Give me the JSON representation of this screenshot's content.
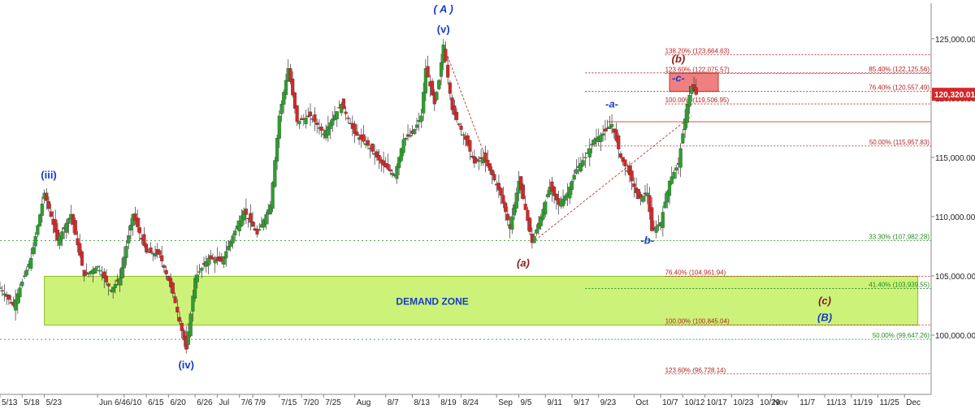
{
  "chart_data": {
    "type": "candlestick",
    "title": "",
    "xlabel": "",
    "ylabel": "",
    "ylim": [
      95000,
      128000
    ],
    "grid": false,
    "last_price_label": "120,320.01",
    "y_ticks": [
      {
        "value": 100000,
        "label": "100,000.00"
      },
      {
        "value": 105000,
        "label": "105,000.00"
      },
      {
        "value": 110000,
        "label": "110,000.00"
      },
      {
        "value": 115000,
        "label": "115,000.00"
      },
      {
        "value": 120000,
        "label": "120,000.00"
      },
      {
        "value": 125000,
        "label": "125,000.00"
      }
    ],
    "x_ticks": [
      {
        "label": "5/13",
        "x": 0
      },
      {
        "label": "5/18",
        "x": 5
      },
      {
        "label": "5/23",
        "x": 10
      },
      {
        "label": "Jun 6/4",
        "x": 22
      },
      {
        "label": "6/10",
        "x": 28
      },
      {
        "label": "6/15",
        "x": 33
      },
      {
        "label": "6/20",
        "x": 38
      },
      {
        "label": "6/26",
        "x": 44
      },
      {
        "label": "Jul",
        "x": 49
      },
      {
        "label": "7/6",
        "x": 54
      },
      {
        "label": "7/9",
        "x": 57
      },
      {
        "label": "7/15",
        "x": 63
      },
      {
        "label": "7/20",
        "x": 68
      },
      {
        "label": "7/25",
        "x": 73
      },
      {
        "label": "Aug",
        "x": 80
      },
      {
        "label": "8/7",
        "x": 87
      },
      {
        "label": "8/13",
        "x": 93
      },
      {
        "label": "8/19",
        "x": 99
      },
      {
        "label": "8/24",
        "x": 104
      },
      {
        "label": "Sep",
        "x": 112
      },
      {
        "label": "9/5",
        "x": 117
      },
      {
        "label": "9/11",
        "x": 123
      },
      {
        "label": "9/17",
        "x": 129
      },
      {
        "label": "9/23",
        "x": 135
      },
      {
        "label": "Oct",
        "x": 143
      },
      {
        "label": "10/7",
        "x": 149
      },
      {
        "label": "10/12",
        "x": 154
      },
      {
        "label": "10/17",
        "x": 159
      },
      {
        "label": "10/23",
        "x": 165
      },
      {
        "label": "10/29",
        "x": 171
      },
      {
        "label": "Nov",
        "x": 174
      },
      {
        "label": "11/7",
        "x": 180
      },
      {
        "label": "11/13",
        "x": 186
      },
      {
        "label": "11/19",
        "x": 192
      },
      {
        "label": "11/25",
        "x": 198
      },
      {
        "label": "Dec",
        "x": 204
      }
    ],
    "swing_points": [
      {
        "x": 0,
        "y": 104000
      },
      {
        "x": 3,
        "y": 102500
      },
      {
        "x": 7,
        "y": 106500
      },
      {
        "x": 10,
        "y": 112000
      },
      {
        "x": 13,
        "y": 108000
      },
      {
        "x": 16,
        "y": 110200
      },
      {
        "x": 19,
        "y": 105000
      },
      {
        "x": 22,
        "y": 105800
      },
      {
        "x": 25,
        "y": 103800
      },
      {
        "x": 27,
        "y": 104800
      },
      {
        "x": 30,
        "y": 110200
      },
      {
        "x": 33,
        "y": 107000
      },
      {
        "x": 36,
        "y": 106800
      },
      {
        "x": 39,
        "y": 103500
      },
      {
        "x": 42,
        "y": 98800
      },
      {
        "x": 44,
        "y": 104800
      },
      {
        "x": 47,
        "y": 106500
      },
      {
        "x": 50,
        "y": 106200
      },
      {
        "x": 53,
        "y": 108800
      },
      {
        "x": 55,
        "y": 110500
      },
      {
        "x": 58,
        "y": 108500
      },
      {
        "x": 61,
        "y": 111000
      },
      {
        "x": 63,
        "y": 118500
      },
      {
        "x": 65,
        "y": 122500
      },
      {
        "x": 67,
        "y": 118000
      },
      {
        "x": 70,
        "y": 118500
      },
      {
        "x": 73,
        "y": 117000
      },
      {
        "x": 77,
        "y": 119500
      },
      {
        "x": 80,
        "y": 117000
      },
      {
        "x": 83,
        "y": 116000
      },
      {
        "x": 86,
        "y": 114500
      },
      {
        "x": 89,
        "y": 113500
      },
      {
        "x": 91,
        "y": 116500
      },
      {
        "x": 93,
        "y": 117000
      },
      {
        "x": 95,
        "y": 118500
      },
      {
        "x": 96,
        "y": 122500
      },
      {
        "x": 98,
        "y": 119500
      },
      {
        "x": 99,
        "y": 121500
      },
      {
        "x": 100,
        "y": 124500
      },
      {
        "x": 102,
        "y": 119000
      },
      {
        "x": 105,
        "y": 116500
      },
      {
        "x": 107,
        "y": 114500
      },
      {
        "x": 109,
        "y": 115000
      },
      {
        "x": 111,
        "y": 113500
      },
      {
        "x": 113,
        "y": 111800
      },
      {
        "x": 115,
        "y": 109000
      },
      {
        "x": 117,
        "y": 113000
      },
      {
        "x": 118,
        "y": 111500
      },
      {
        "x": 120,
        "y": 107800
      },
      {
        "x": 122,
        "y": 110000
      },
      {
        "x": 124,
        "y": 112500
      },
      {
        "x": 126,
        "y": 111000
      },
      {
        "x": 128,
        "y": 112000
      },
      {
        "x": 130,
        "y": 114000
      },
      {
        "x": 132,
        "y": 115000
      },
      {
        "x": 134,
        "y": 116500
      },
      {
        "x": 136,
        "y": 117000
      },
      {
        "x": 138,
        "y": 117800
      },
      {
        "x": 140,
        "y": 115000
      },
      {
        "x": 142,
        "y": 113500
      },
      {
        "x": 144,
        "y": 111500
      },
      {
        "x": 146,
        "y": 112000
      },
      {
        "x": 147,
        "y": 108800
      },
      {
        "x": 149,
        "y": 109500
      },
      {
        "x": 151,
        "y": 113000
      },
      {
        "x": 153,
        "y": 114500
      },
      {
        "x": 154,
        "y": 117000
      },
      {
        "x": 155,
        "y": 119500
      },
      {
        "x": 156,
        "y": 121000
      },
      {
        "x": 157,
        "y": 120300
      }
    ],
    "demand_zone": {
      "label": "DEMAND ZONE",
      "x_start": 10,
      "x_end": 207,
      "y_low": 100845.04,
      "y_high": 104961.94
    },
    "target_box": {
      "x_start": 151,
      "x_end": 162,
      "y_low": 120557.49,
      "y_high": 122125.56
    },
    "fib_levels": [
      {
        "label": "138.20% (123,664.63)",
        "value": 123664.63,
        "color": "#b22222",
        "side": "mid"
      },
      {
        "label": "123.60% (122,075.57)",
        "value": 122075.57,
        "color": "#b22222",
        "side": "mid"
      },
      {
        "label": "85.40% (122,125.56)",
        "value": 122125.56,
        "color": "#b22222",
        "side": "right"
      },
      {
        "label": "76.40% (120,557.49)",
        "value": 120557.49,
        "color": "#b22222",
        "side": "right"
      },
      {
        "label": "100.00% (119,506.95)",
        "value": 119506.95,
        "color": "#b22222",
        "side": "mid"
      },
      {
        "label": "50.00% (115,957.83)",
        "value": 115957.83,
        "color": "#b22222",
        "side": "right"
      },
      {
        "label": "33.30% (107,982.28)",
        "value": 107982.28,
        "color": "#228b22",
        "side": "right"
      },
      {
        "label": "76.40% (104,961.94)",
        "value": 104961.94,
        "color": "#b22222",
        "side": "mid"
      },
      {
        "label": "41.40% (103,939.55)",
        "value": 103939.55,
        "color": "#228b22",
        "side": "right"
      },
      {
        "label": "100.00% (100,845.04)",
        "value": 100845.04,
        "color": "#b22222",
        "side": "mid"
      },
      {
        "label": "50.00% (99,647.26)",
        "value": 99647.26,
        "color": "#228b22",
        "side": "right"
      },
      {
        "label": "123.60% (96,728.14)",
        "value": 96728.14,
        "color": "#b22222",
        "side": "mid"
      }
    ],
    "resistance_line": {
      "value": 118000,
      "x_start": 137,
      "color": "#d9534f"
    },
    "diagonal_lines": [
      {
        "from": [
          100,
          124500
        ],
        "to": [
          111,
          113500
        ]
      },
      {
        "from": [
          120,
          107800
        ],
        "to": [
          156,
          118500
        ]
      }
    ],
    "wave_labels": [
      {
        "text": "( A )",
        "x": 100,
        "y": 127200,
        "color": "#1a3cc8",
        "italic": true
      },
      {
        "text": "(v)",
        "x": 100,
        "y": 125500,
        "color": "#1a3cc8",
        "italic": false
      },
      {
        "text": "(iii)",
        "x": 11,
        "y": 113200,
        "color": "#1a3cc8",
        "italic": false
      },
      {
        "text": "(iv)",
        "x": 42,
        "y": 97200,
        "color": "#1a3cc8",
        "italic": false
      },
      {
        "text": "(a)",
        "x": 118,
        "y": 105800,
        "color": "#8b1a1a",
        "italic": true
      },
      {
        "text": "-a-",
        "x": 138,
        "y": 119200,
        "color": "#1a3cc8",
        "italic": true
      },
      {
        "text": "-b-",
        "x": 146,
        "y": 107700,
        "color": "#1a3cc8",
        "italic": true
      },
      {
        "text": "-c-",
        "x": 153,
        "y": 121400,
        "color": "#1a3cc8",
        "italic": true
      },
      {
        "text": "(b)",
        "x": 153,
        "y": 123000,
        "color": "#8b1a1a",
        "italic": true
      },
      {
        "text": "(c)",
        "x": 186,
        "y": 102600,
        "color": "#8b1a1a",
        "italic": true
      },
      {
        "text": "(B)",
        "x": 186,
        "y": 101200,
        "color": "#1a3cc8",
        "italic": true
      }
    ]
  }
}
